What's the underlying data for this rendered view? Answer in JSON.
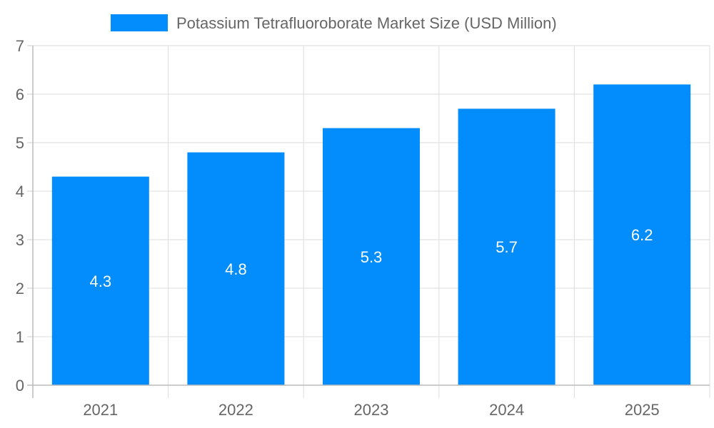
{
  "chart_data": {
    "type": "bar",
    "categories": [
      "2021",
      "2022",
      "2023",
      "2024",
      "2025"
    ],
    "series": [
      {
        "name": "Potassium Tetrafluoroborate Market  Size (USD Million)",
        "values": [
          4.3,
          4.8,
          5.3,
          5.7,
          6.2
        ],
        "color": "#038cfc"
      }
    ],
    "y_ticks": [
      "0",
      "1",
      "2",
      "3",
      "4",
      "5",
      "6",
      "7"
    ],
    "data_labels": [
      "4.3",
      "4.8",
      "5.3",
      "5.7",
      "6.2"
    ],
    "ylim": [
      0,
      7
    ],
    "grid": true,
    "legend_position": "top-center"
  }
}
